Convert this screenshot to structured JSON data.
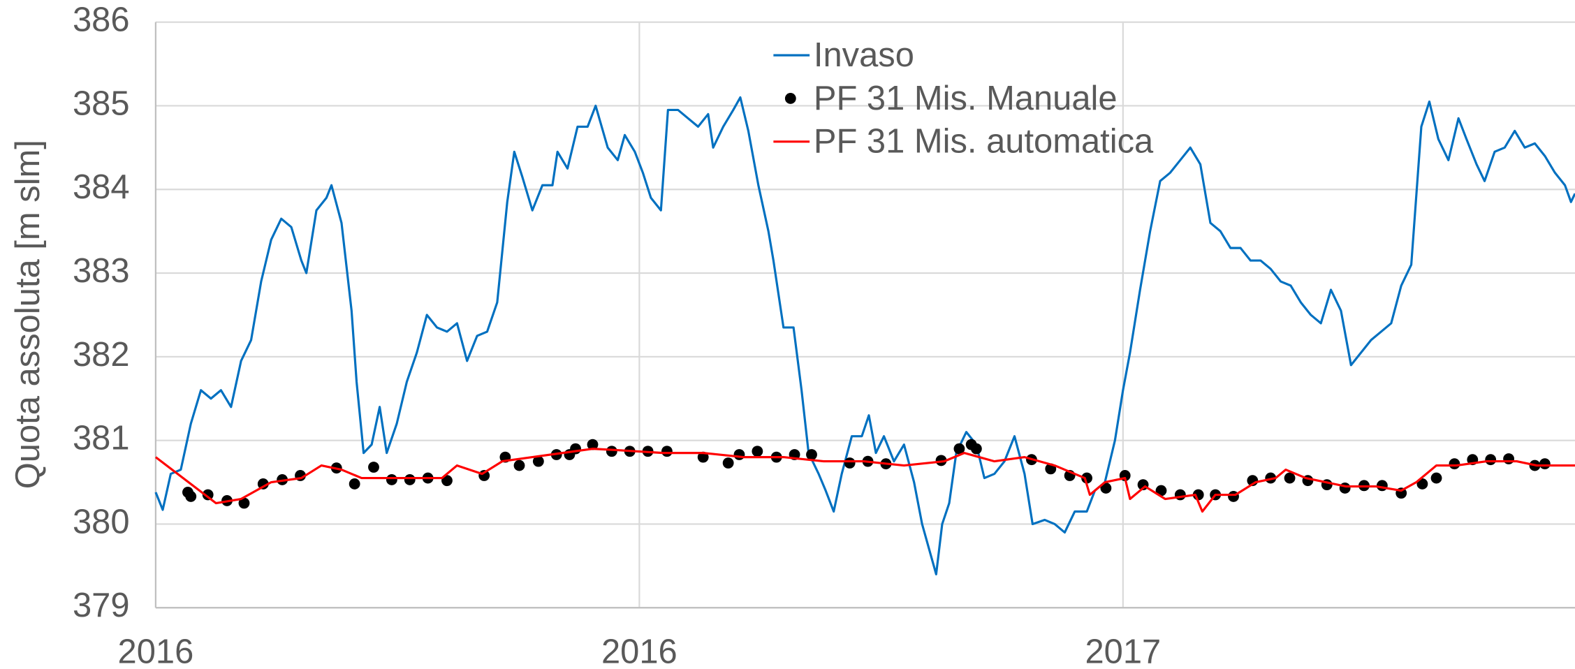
{
  "chart_data": {
    "type": "line",
    "y_label": "Quota assoluta [m slm]",
    "xlim": [
      0,
      1413
    ],
    "xticks": [
      {
        "value": 0,
        "label": "2016"
      },
      {
        "value": 481.5,
        "label": "2016"
      },
      {
        "value": 963,
        "label": "2017"
      }
    ],
    "ylim": [
      379,
      386
    ],
    "yticks": [
      379,
      380,
      381,
      382,
      383,
      384,
      385,
      386
    ],
    "grid": true,
    "legend": "top",
    "series": [
      {
        "name": "Invaso",
        "type": "line",
        "color": "#0070c0",
        "x": [
          0,
          7,
          15,
          25,
          35,
          45,
          55,
          65,
          75,
          85,
          95,
          105,
          115,
          125,
          135,
          145,
          150,
          160,
          170,
          175,
          185,
          195,
          200,
          207,
          215,
          223,
          230,
          240,
          250,
          260,
          270,
          280,
          290,
          300,
          310,
          320,
          330,
          340,
          350,
          357,
          365,
          375,
          385,
          395,
          400,
          410,
          420,
          430,
          438,
          450,
          460,
          467,
          477,
          485,
          493,
          503,
          510,
          520,
          530,
          540,
          550,
          555,
          565,
          575,
          582,
          590,
          600,
          610,
          615,
          625,
          635,
          643,
          650,
          660,
          667,
          675,
          683,
          693,
          703,
          710,
          717,
          725,
          735,
          745,
          755,
          763,
          770,
          777,
          783,
          790,
          797,
          807,
          817,
          825,
          835,
          845,
          855,
          865,
          873,
          885,
          895,
          905,
          915,
          927,
          935,
          945,
          955,
          963,
          970,
          980,
          990,
          1000,
          1010,
          1020,
          1030,
          1040,
          1050,
          1060,
          1070,
          1080,
          1090,
          1100,
          1110,
          1120,
          1130,
          1140,
          1150,
          1160,
          1170,
          1180,
          1190,
          1200,
          1210,
          1220,
          1230,
          1240,
          1250,
          1260,
          1268,
          1277,
          1287,
          1297,
          1305,
          1315,
          1323,
          1333,
          1343,
          1353,
          1363,
          1373,
          1383,
          1393,
          1403,
          1409,
          1413
        ],
        "values": [
          380.38,
          380.17,
          380.6,
          380.65,
          381.2,
          381.6,
          381.5,
          381.6,
          381.4,
          381.95,
          382.2,
          382.9,
          383.4,
          383.65,
          383.55,
          383.15,
          383.0,
          383.75,
          383.9,
          384.05,
          383.6,
          382.55,
          381.7,
          380.85,
          380.95,
          381.4,
          380.85,
          381.2,
          381.7,
          382.05,
          382.5,
          382.35,
          382.3,
          382.4,
          381.95,
          382.25,
          382.3,
          382.65,
          383.85,
          384.45,
          384.15,
          383.75,
          384.05,
          384.05,
          384.45,
          384.25,
          384.75,
          384.75,
          385.0,
          384.5,
          384.35,
          384.65,
          384.45,
          384.2,
          383.9,
          383.75,
          384.95,
          384.95,
          384.85,
          384.75,
          384.9,
          384.5,
          384.75,
          384.95,
          385.1,
          384.7,
          384.05,
          383.5,
          383.15,
          382.35,
          382.35,
          381.6,
          380.85,
          380.6,
          380.4,
          380.15,
          380.6,
          381.05,
          381.05,
          381.3,
          380.85,
          381.05,
          380.75,
          380.95,
          380.5,
          380.0,
          379.7,
          379.4,
          380.0,
          380.25,
          380.85,
          381.1,
          380.95,
          380.55,
          380.6,
          380.75,
          381.05,
          380.6,
          380.0,
          380.05,
          380.0,
          379.9,
          380.15,
          380.15,
          380.4,
          380.5,
          381.0,
          381.6,
          382.05,
          382.8,
          383.5,
          384.1,
          384.2,
          384.35,
          384.5,
          384.3,
          383.6,
          383.5,
          383.3,
          383.3,
          383.15,
          383.15,
          383.05,
          382.9,
          382.85,
          382.65,
          382.5,
          382.4,
          382.8,
          382.55,
          381.9,
          382.05,
          382.2,
          382.3,
          382.4,
          382.85,
          383.1,
          384.75,
          385.05,
          384.6,
          384.35,
          384.85,
          384.6,
          384.3,
          384.1,
          384.45,
          384.5,
          384.7,
          384.5,
          384.55,
          384.4,
          384.2,
          384.05,
          383.85,
          383.95
        ]
      },
      {
        "name": "PF 31 Mis. Manuale",
        "type": "scatter",
        "color": "#000000",
        "x": [
          32,
          35,
          52,
          71,
          88,
          107,
          126,
          144,
          180,
          198,
          217,
          235,
          253,
          271,
          290,
          327,
          348,
          362,
          381,
          399,
          412,
          418,
          435,
          454,
          472,
          490,
          509,
          545,
          570,
          581,
          599,
          618,
          636,
          653,
          691,
          709,
          727,
          782,
          800,
          812,
          817,
          872,
          891,
          910,
          927,
          946,
          965,
          983,
          1001,
          1020,
          1038,
          1055,
          1073,
          1092,
          1110,
          1129,
          1147,
          1166,
          1184,
          1203,
          1221,
          1240,
          1261,
          1275,
          1293,
          1311,
          1329,
          1347,
          1373,
          1383
        ],
        "values": [
          380.38,
          380.33,
          380.35,
          380.28,
          380.25,
          380.48,
          380.53,
          380.58,
          380.67,
          380.48,
          380.68,
          380.53,
          380.53,
          380.55,
          380.52,
          380.58,
          380.8,
          380.7,
          380.75,
          380.83,
          380.83,
          380.9,
          380.95,
          380.87,
          380.87,
          380.87,
          380.87,
          380.8,
          380.73,
          380.83,
          380.87,
          380.8,
          380.83,
          380.83,
          380.73,
          380.75,
          380.72,
          380.76,
          380.9,
          380.95,
          380.9,
          380.77,
          380.66,
          380.58,
          380.55,
          380.43,
          380.58,
          380.47,
          380.4,
          380.35,
          380.35,
          380.35,
          380.33,
          380.52,
          380.55,
          380.55,
          380.52,
          380.47,
          380.43,
          380.46,
          380.46,
          380.37,
          380.48,
          380.55,
          380.72,
          380.77,
          380.77,
          380.78,
          380.7,
          380.72
        ]
      },
      {
        "name": "PF 31 Mis. automatica",
        "type": "line",
        "color": "#ff0000",
        "x": [
          0,
          60,
          85,
          115,
          145,
          165,
          185,
          205,
          245,
          285,
          300,
          325,
          345,
          375,
          405,
          435,
          465,
          505,
          545,
          585,
          625,
          665,
          705,
          745,
          785,
          805,
          835,
          865,
          895,
          925,
          930,
          945,
          965,
          970,
          985,
          1005,
          1035,
          1042,
          1055,
          1075,
          1095,
          1115,
          1125,
          1145,
          1165,
          1185,
          1215,
          1240,
          1255,
          1275,
          1295,
          1325,
          1355,
          1375,
          1413
        ],
        "values": [
          380.8,
          380.25,
          380.3,
          380.5,
          380.55,
          380.7,
          380.65,
          380.55,
          380.55,
          380.55,
          380.7,
          380.6,
          380.75,
          380.8,
          380.85,
          380.9,
          380.88,
          380.85,
          380.85,
          380.8,
          380.8,
          380.75,
          380.75,
          380.7,
          380.75,
          380.85,
          380.75,
          380.8,
          380.7,
          380.55,
          380.35,
          380.5,
          380.55,
          380.3,
          380.45,
          380.3,
          380.35,
          380.15,
          380.35,
          380.35,
          380.5,
          380.55,
          380.65,
          380.55,
          380.5,
          380.45,
          380.45,
          380.4,
          380.5,
          380.7,
          380.7,
          380.75,
          380.75,
          380.7,
          380.7
        ]
      }
    ]
  }
}
